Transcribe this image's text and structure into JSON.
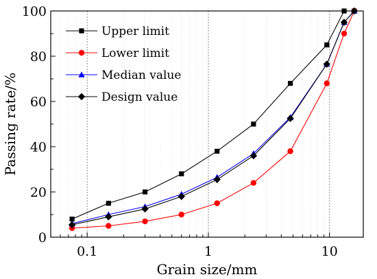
{
  "chart_data": {
    "type": "line",
    "xscale": "log",
    "xlabel": "Grain size/mm",
    "ylabel": "Passing rate/%",
    "xlim": [
      0.05,
      19
    ],
    "ylim": [
      0,
      100
    ],
    "xticks": [
      {
        "value": 0.1,
        "label": "0.1"
      },
      {
        "value": 1,
        "label": "1"
      },
      {
        "value": 10,
        "label": "10"
      }
    ],
    "yticks": [
      {
        "value": 0,
        "label": "0"
      },
      {
        "value": 20,
        "label": "20"
      },
      {
        "value": 40,
        "label": "40"
      },
      {
        "value": 60,
        "label": "60"
      },
      {
        "value": 80,
        "label": "80"
      },
      {
        "value": 100,
        "label": "100"
      }
    ],
    "grid": "vertical-minor",
    "legend_position": "top-left",
    "x": [
      0.075,
      0.15,
      0.3,
      0.6,
      1.18,
      2.36,
      4.75,
      9.5,
      13.2,
      16
    ],
    "series": [
      {
        "name": "Upper limit",
        "color": "#000000",
        "marker": "square",
        "values": [
          8,
          15,
          20,
          28,
          38,
          50,
          68,
          85,
          100,
          100
        ]
      },
      {
        "name": "Lower limit",
        "color": "#ff0000",
        "marker": "circle",
        "values": [
          4,
          5,
          7,
          10,
          15,
          24,
          38,
          68,
          90,
          100
        ]
      },
      {
        "name": "Median value",
        "color": "#0000ff",
        "marker": "triangle",
        "values": [
          6,
          10,
          13.5,
          19,
          26.5,
          37,
          53,
          76.5,
          95,
          100
        ]
      },
      {
        "name": "Design value",
        "color": "#000000",
        "marker": "diamond",
        "values": [
          5.5,
          9,
          12.5,
          18,
          25.5,
          36,
          52.5,
          76.5,
          95,
          100
        ]
      }
    ]
  }
}
